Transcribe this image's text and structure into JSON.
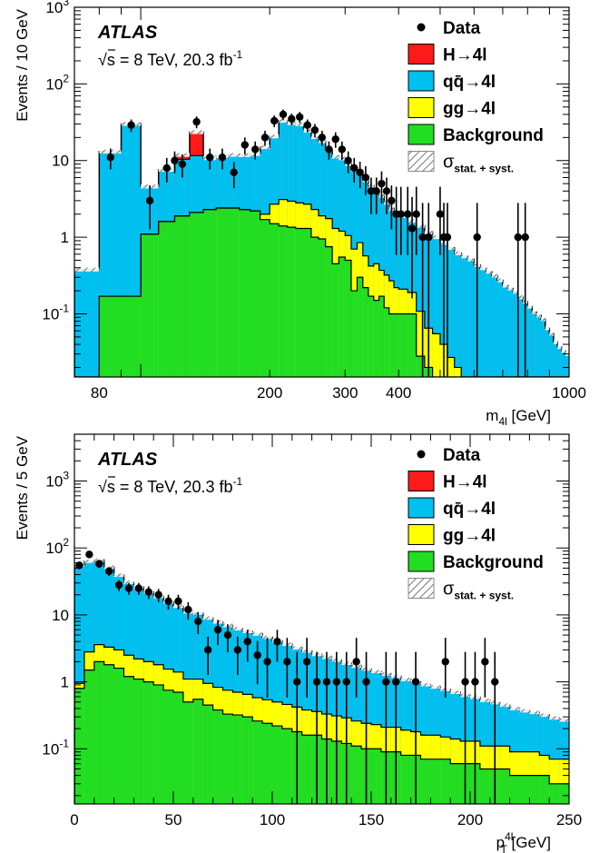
{
  "chart_data": [
    {
      "type": "histogram-stack-logy",
      "experiment_label": "ATLAS",
      "energy_label": "√s = 8 TeV, 20.3 fb",
      "lumi_exp": "-1",
      "xlabel": "m",
      "xlabel_sub": "4l",
      "xlabel_unit": " [GeV]",
      "ylabel": "Events / 10 GeV",
      "xscale": "log",
      "xlim": [
        70,
        1000
      ],
      "ylim": [
        0.015,
        1000
      ],
      "x_ticks": [
        "80",
        "200",
        "300",
        "400",
        "1000"
      ],
      "legend": [
        {
          "label": "Data",
          "color": "#000000",
          "kind": "marker"
        },
        {
          "label": "H→4l",
          "color": "#ff1a1a",
          "kind": "box"
        },
        {
          "label": "qq̄→4l",
          "color": "#00c0f0",
          "kind": "box"
        },
        {
          "label": "gg→4l",
          "color": "#ffff00",
          "kind": "box"
        },
        {
          "label": "Background",
          "color": "#22dd22",
          "kind": "box"
        },
        {
          "label": "σ",
          "color": "#888888",
          "kind": "hatch",
          "sub": "stat. + syst."
        }
      ],
      "series": [
        {
          "name": "Background",
          "color": "#22dd22",
          "edges": [
            70,
            80,
            90,
            100,
            110,
            120,
            130,
            140,
            150,
            160,
            170,
            180,
            190,
            200,
            210,
            220,
            230,
            240,
            250,
            260,
            270,
            280,
            290,
            300,
            310,
            320,
            330,
            340,
            350,
            360,
            370,
            380,
            390,
            400,
            420,
            440,
            460,
            480,
            500,
            520,
            540,
            560,
            580,
            600,
            620,
            640,
            660,
            680,
            700,
            720,
            740,
            760,
            780,
            800,
            820,
            840,
            860,
            880,
            900,
            920,
            940,
            960,
            980,
            1000
          ],
          "values": [
            0,
            0.17,
            0.17,
            1.1,
            1.6,
            1.9,
            2.1,
            2.3,
            2.4,
            2.4,
            2.3,
            2.2,
            1.7,
            1.5,
            1.4,
            1.35,
            1.3,
            1.3,
            1.0,
            0.95,
            0.75,
            0.45,
            0.55,
            0.5,
            0.2,
            0.3,
            0.22,
            0.17,
            0.15,
            0.17,
            0.12,
            0.1,
            0.1,
            0.1,
            0.1,
            0.028,
            0.02,
            0.015,
            0.015,
            0.015,
            0.015,
            0.015,
            0.015,
            0.015,
            0.015,
            0.015,
            0.015,
            0.015,
            0.015,
            0.015,
            0.015,
            0.015,
            0.015,
            0.015,
            0.015,
            0.015,
            0.015,
            0.015,
            0.015,
            0.015,
            0.015,
            0.015,
            0.015
          ]
        },
        {
          "name": "gg→4l",
          "color": "#ffff00",
          "values": [
            0,
            0,
            0,
            0,
            0,
            0,
            0,
            0,
            0,
            0,
            0,
            0,
            0.3,
            1.2,
            1.7,
            1.6,
            1.5,
            1.4,
            1.3,
            0.95,
            1.0,
            0.85,
            0.65,
            0.55,
            0.5,
            0.55,
            0.35,
            0.25,
            0.3,
            0.2,
            0.2,
            0.17,
            0.12,
            0.11,
            0.09,
            0.08,
            0.045,
            0.04,
            0.025,
            0.012,
            0.005,
            0,
            0,
            0,
            0,
            0,
            0,
            0,
            0,
            0,
            0,
            0,
            0,
            0,
            0,
            0,
            0,
            0,
            0,
            0,
            0,
            0,
            0
          ]
        },
        {
          "name": "qq̄→4l",
          "color": "#00c0f0",
          "values": [
            0.38,
            13,
            30,
            3.5,
            6,
            8.5,
            9.5,
            8.5,
            9,
            9.5,
            9.5,
            10,
            13,
            18,
            30,
            28,
            27,
            22,
            18,
            16,
            12,
            10,
            9.5,
            8,
            7,
            6.5,
            5,
            4.3,
            3.7,
            3.1,
            2.5,
            2.1,
            1.8,
            1.7,
            1.45,
            1.3,
            1.1,
            0.95,
            0.8,
            0.7,
            0.6,
            0.55,
            0.5,
            0.42,
            0.38,
            0.34,
            0.3,
            0.26,
            0.22,
            0.2,
            0.18,
            0.15,
            0.13,
            0.11,
            0.09,
            0.08,
            0.07,
            0.05,
            0.04,
            0.028,
            0.022,
            0.018,
            0.015
          ]
        },
        {
          "name": "H→4l",
          "color": "#ff1a1a",
          "values": [
            0,
            0,
            0,
            0,
            0,
            1.5,
            12,
            0,
            0,
            0,
            0,
            0,
            0,
            0,
            0,
            0,
            0,
            0,
            0,
            0,
            0,
            0,
            0,
            0,
            0,
            0,
            0,
            0,
            0,
            0,
            0,
            0,
            0,
            0,
            0,
            0,
            0,
            0,
            0,
            0,
            0,
            0,
            0,
            0,
            0,
            0,
            0,
            0,
            0,
            0,
            0,
            0,
            0,
            0,
            0,
            0,
            0,
            0,
            0,
            0,
            0,
            0,
            0
          ]
        }
      ],
      "data_points": [
        {
          "x": 85,
          "y": 11
        },
        {
          "x": 95,
          "y": 29
        },
        {
          "x": 105,
          "y": 3
        },
        {
          "x": 115,
          "y": 8
        },
        {
          "x": 120,
          "y": 10
        },
        {
          "x": 125,
          "y": 9
        },
        {
          "x": 135,
          "y": 32
        },
        {
          "x": 145,
          "y": 11
        },
        {
          "x": 155,
          "y": 11
        },
        {
          "x": 165,
          "y": 7
        },
        {
          "x": 175,
          "y": 16
        },
        {
          "x": 185,
          "y": 14
        },
        {
          "x": 195,
          "y": 20
        },
        {
          "x": 205,
          "y": 33
        },
        {
          "x": 215,
          "y": 40
        },
        {
          "x": 225,
          "y": 35
        },
        {
          "x": 235,
          "y": 37
        },
        {
          "x": 245,
          "y": 29
        },
        {
          "x": 255,
          "y": 25
        },
        {
          "x": 265,
          "y": 20
        },
        {
          "x": 275,
          "y": 14
        },
        {
          "x": 285,
          "y": 19
        },
        {
          "x": 295,
          "y": 14
        },
        {
          "x": 305,
          "y": 10
        },
        {
          "x": 315,
          "y": 8
        },
        {
          "x": 325,
          "y": 7
        },
        {
          "x": 335,
          "y": 6
        },
        {
          "x": 345,
          "y": 4
        },
        {
          "x": 355,
          "y": 4
        },
        {
          "x": 365,
          "y": 5
        },
        {
          "x": 375,
          "y": 4
        },
        {
          "x": 385,
          "y": 3
        },
        {
          "x": 395,
          "y": 2
        },
        {
          "x": 405,
          "y": 2
        },
        {
          "x": 420,
          "y": 2
        },
        {
          "x": 430,
          "y": 1.3
        },
        {
          "x": 440,
          "y": 2
        },
        {
          "x": 455,
          "y": 1
        },
        {
          "x": 470,
          "y": 1
        },
        {
          "x": 500,
          "y": 2
        },
        {
          "x": 510,
          "y": 1
        },
        {
          "x": 520,
          "y": 1
        },
        {
          "x": 610,
          "y": 1
        },
        {
          "x": 760,
          "y": 1
        },
        {
          "x": 790,
          "y": 1
        }
      ]
    },
    {
      "type": "histogram-stack-logy",
      "experiment_label": "ATLAS",
      "energy_label": "√s = 8 TeV, 20.3 fb",
      "lumi_exp": "-1",
      "xlabel": "p",
      "xlabel_sub": "T",
      "xlabel_sup": "4l",
      "xlabel_unit": " [GeV]",
      "ylabel": "Events / 5 GeV",
      "xscale": "linear",
      "xlim": [
        0,
        250
      ],
      "ylim": [
        0.015,
        5000
      ],
      "x_ticks": [
        "0",
        "50",
        "100",
        "150",
        "200",
        "250"
      ],
      "legend": [
        {
          "label": "Data",
          "color": "#000000",
          "kind": "marker"
        },
        {
          "label": "H→4l",
          "color": "#ff1a1a",
          "kind": "box"
        },
        {
          "label": "qq̄→4l",
          "color": "#00c0f0",
          "kind": "box"
        },
        {
          "label": "gg→4l",
          "color": "#ffff00",
          "kind": "box"
        },
        {
          "label": "Background",
          "color": "#22dd22",
          "kind": "box"
        },
        {
          "label": "σ",
          "color": "#888888",
          "kind": "hatch",
          "sub": "stat. + syst."
        }
      ],
      "bin_width": 5,
      "series": [
        {
          "name": "Background",
          "color": "#22dd22",
          "values": [
            0.8,
            1.5,
            2.0,
            1.8,
            1.6,
            1.2,
            1.1,
            1.0,
            0.9,
            0.75,
            0.7,
            0.5,
            0.55,
            0.45,
            0.38,
            0.33,
            0.32,
            0.3,
            0.26,
            0.24,
            0.22,
            0.2,
            0.18,
            0.16,
            0.16,
            0.14,
            0.13,
            0.12,
            0.11,
            0.1,
            0.1,
            0.09,
            0.09,
            0.08,
            0.08,
            0.07,
            0.07,
            0.07,
            0.06,
            0.06,
            0.06,
            0.05,
            0.05,
            0.05,
            0.04,
            0.04,
            0.04,
            0.04,
            0.03,
            0.03
          ]
        },
        {
          "name": "gg→4l",
          "color": "#ffff00",
          "values": [
            0.15,
            1.3,
            1.6,
            1.5,
            1.4,
            1.3,
            1.1,
            1.0,
            0.9,
            0.8,
            0.7,
            0.6,
            0.55,
            0.5,
            0.45,
            0.42,
            0.38,
            0.35,
            0.32,
            0.3,
            0.28,
            0.26,
            0.24,
            0.22,
            0.2,
            0.19,
            0.18,
            0.17,
            0.15,
            0.14,
            0.13,
            0.12,
            0.12,
            0.11,
            0.1,
            0.09,
            0.09,
            0.08,
            0.08,
            0.07,
            0.07,
            0.06,
            0.06,
            0.06,
            0.05,
            0.05,
            0.05,
            0.04,
            0.04,
            0.04
          ]
        },
        {
          "name": "qq̄→4l",
          "color": "#00c0f0",
          "values": [
            55,
            60,
            62,
            48,
            36,
            28,
            24,
            20,
            17,
            14,
            12,
            10,
            9.5,
            8,
            7,
            6.2,
            5.5,
            5,
            4.6,
            4.1,
            3.6,
            3.2,
            2.8,
            2.5,
            2.2,
            2,
            1.8,
            1.6,
            1.45,
            1.3,
            1.2,
            1.1,
            1.0,
            0.9,
            0.82,
            0.75,
            0.68,
            0.62,
            0.56,
            0.5,
            0.46,
            0.42,
            0.38,
            0.34,
            0.31,
            0.28,
            0.26,
            0.24,
            0.22,
            0.2
          ]
        },
        {
          "name": "H→4l",
          "color": "#ff1a1a",
          "values": [
            0.2,
            0.5,
            0.6,
            0.5,
            0.4,
            0.3,
            0.25,
            0.2,
            0.15,
            0.12,
            0.1,
            0.08,
            0.07,
            0.06,
            0.05,
            0.04,
            0.03,
            0.03,
            0.02,
            0.02,
            0.02,
            0.01,
            0.01,
            0.01,
            0.01,
            0.01,
            0.01,
            0.01,
            0.01,
            0.01,
            0,
            0,
            0,
            0,
            0,
            0,
            0,
            0,
            0,
            0,
            0,
            0,
            0,
            0,
            0,
            0,
            0,
            0,
            0,
            0
          ]
        }
      ],
      "data_points": [
        {
          "x": 2.5,
          "y": 55
        },
        {
          "x": 7.5,
          "y": 80
        },
        {
          "x": 12.5,
          "y": 58
        },
        {
          "x": 17.5,
          "y": 45
        },
        {
          "x": 22.5,
          "y": 28
        },
        {
          "x": 27.5,
          "y": 25
        },
        {
          "x": 32.5,
          "y": 25
        },
        {
          "x": 37.5,
          "y": 22
        },
        {
          "x": 42.5,
          "y": 20
        },
        {
          "x": 47.5,
          "y": 16
        },
        {
          "x": 52.5,
          "y": 16
        },
        {
          "x": 57.5,
          "y": 12
        },
        {
          "x": 62.5,
          "y": 8
        },
        {
          "x": 67.5,
          "y": 3
        },
        {
          "x": 72.5,
          "y": 6
        },
        {
          "x": 77.5,
          "y": 5
        },
        {
          "x": 82.5,
          "y": 3
        },
        {
          "x": 87.5,
          "y": 4
        },
        {
          "x": 92.5,
          "y": 2.5
        },
        {
          "x": 97.5,
          "y": 2
        },
        {
          "x": 102.5,
          "y": 4
        },
        {
          "x": 107.5,
          "y": 2
        },
        {
          "x": 112.5,
          "y": 1
        },
        {
          "x": 117.5,
          "y": 2
        },
        {
          "x": 122.5,
          "y": 1
        },
        {
          "x": 127.5,
          "y": 1
        },
        {
          "x": 132.5,
          "y": 1
        },
        {
          "x": 137.5,
          "y": 1
        },
        {
          "x": 142.5,
          "y": 2
        },
        {
          "x": 147.5,
          "y": 1
        },
        {
          "x": 157.5,
          "y": 1
        },
        {
          "x": 162.5,
          "y": 1
        },
        {
          "x": 172.5,
          "y": 1
        },
        {
          "x": 187.5,
          "y": 2
        },
        {
          "x": 197.5,
          "y": 1
        },
        {
          "x": 202.5,
          "y": 1
        },
        {
          "x": 207.5,
          "y": 2
        },
        {
          "x": 212.5,
          "y": 1
        }
      ]
    }
  ]
}
